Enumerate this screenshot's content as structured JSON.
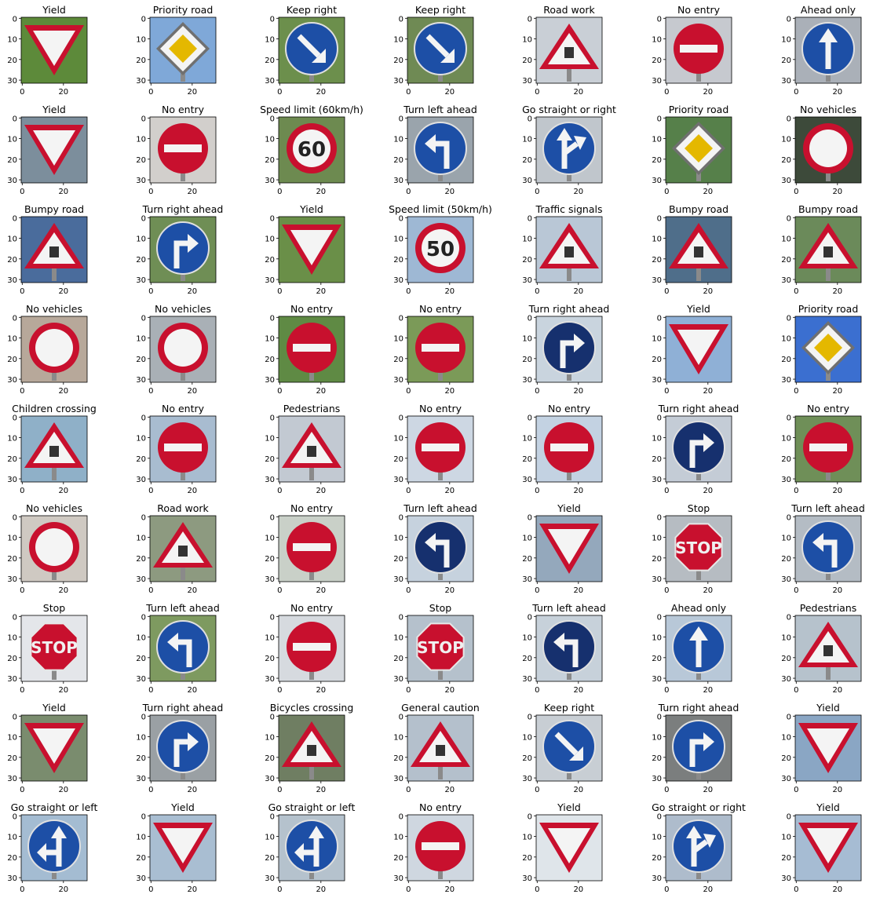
{
  "axis": {
    "x_ticks": [
      "0",
      "20"
    ],
    "y_ticks": [
      "0",
      "10",
      "20",
      "30"
    ]
  },
  "colors": {
    "red": "#c8102e",
    "blue": "#1d4fa6",
    "navy": "#16306e",
    "yellow": "#e4b800",
    "white": "#f4f4f4",
    "post": "#8a8a8a"
  },
  "panels": [
    {
      "title": "Yield",
      "sign": "yield",
      "bg": "#5d8a3a"
    },
    {
      "title": "Priority road",
      "sign": "priority",
      "bg": "#7fa8d8"
    },
    {
      "title": "Keep right",
      "sign": "keep-right",
      "bg": "#6c8f4c"
    },
    {
      "title": "Keep right",
      "sign": "keep-right",
      "bg": "#6f8a54"
    },
    {
      "title": "Road work",
      "sign": "warning",
      "bg": "#c9cfd6"
    },
    {
      "title": "No entry",
      "sign": "no-entry",
      "bg": "#c6c9cf"
    },
    {
      "title": "Ahead only",
      "sign": "ahead-only",
      "bg": "#aab0b8"
    },
    {
      "title": "Yield",
      "sign": "yield",
      "bg": "#7c8e9c"
    },
    {
      "title": "No entry",
      "sign": "no-entry",
      "bg": "#d2cfcc"
    },
    {
      "title": "Speed limit (60km/h)",
      "sign": "speed",
      "label": "60",
      "bg": "#6d8a50"
    },
    {
      "title": "Turn left ahead",
      "sign": "turn-left",
      "bg": "#9aa4ac"
    },
    {
      "title": "Go straight or right",
      "sign": "straight-right",
      "bg": "#c0c6cc"
    },
    {
      "title": "Priority road",
      "sign": "priority",
      "bg": "#56804a"
    },
    {
      "title": "No vehicles",
      "sign": "no-vehicles",
      "bg": "#3d4a3a"
    },
    {
      "title": "Bumpy road",
      "sign": "warning",
      "bg": "#4a6c9c"
    },
    {
      "title": "Turn right ahead",
      "sign": "turn-right",
      "bg": "#6f8e55"
    },
    {
      "title": "Yield",
      "sign": "yield",
      "bg": "#6a8f48"
    },
    {
      "title": "Speed limit (50km/h)",
      "sign": "speed",
      "label": "50",
      "bg": "#9eb8d4"
    },
    {
      "title": "Traffic signals",
      "sign": "warning",
      "bg": "#b9c7d6"
    },
    {
      "title": "Bumpy road",
      "sign": "warning",
      "bg": "#4f6e8a"
    },
    {
      "title": "Bumpy road",
      "sign": "warning",
      "bg": "#6b8a5a"
    },
    {
      "title": "No vehicles",
      "sign": "no-vehicles",
      "bg": "#b7a89a"
    },
    {
      "title": "No vehicles",
      "sign": "no-vehicles",
      "bg": "#a9b0b6"
    },
    {
      "title": "No entry",
      "sign": "no-entry",
      "bg": "#5f8a44"
    },
    {
      "title": "No entry",
      "sign": "no-entry",
      "bg": "#7b9a58"
    },
    {
      "title": "Turn right ahead",
      "sign": "turn-right-navy",
      "bg": "#c9d4de"
    },
    {
      "title": "Yield",
      "sign": "yield",
      "bg": "#8fb0d6"
    },
    {
      "title": "Priority road",
      "sign": "priority",
      "bg": "#3b6fd0"
    },
    {
      "title": "Children crossing",
      "sign": "warning",
      "bg": "#8fb0c8"
    },
    {
      "title": "No entry",
      "sign": "no-entry",
      "bg": "#a8bcd0"
    },
    {
      "title": "Pedestrians",
      "sign": "warning",
      "bg": "#c2c9d2"
    },
    {
      "title": "No entry",
      "sign": "no-entry",
      "bg": "#cdd7e3"
    },
    {
      "title": "No entry",
      "sign": "no-entry",
      "bg": "#c3d2e2"
    },
    {
      "title": "Turn right ahead",
      "sign": "turn-right-navy",
      "bg": "#c4ccd6"
    },
    {
      "title": "No entry",
      "sign": "no-entry",
      "bg": "#6f8f58"
    },
    {
      "title": "No vehicles",
      "sign": "no-vehicles",
      "bg": "#cfc9c2"
    },
    {
      "title": "Road work",
      "sign": "warning",
      "bg": "#8d9a80"
    },
    {
      "title": "No entry",
      "sign": "no-entry",
      "bg": "#c9d0c8"
    },
    {
      "title": "Turn left ahead",
      "sign": "turn-left-navy",
      "bg": "#c6d2de"
    },
    {
      "title": "Yield",
      "sign": "yield",
      "bg": "#94a8bc"
    },
    {
      "title": "Stop",
      "sign": "stop",
      "label": "STOP",
      "bg": "#b6bcc2"
    },
    {
      "title": "Turn left ahead",
      "sign": "turn-left",
      "bg": "#b4bcc4"
    },
    {
      "title": "Stop",
      "sign": "stop",
      "label": "STOP",
      "bg": "#e4e6ea"
    },
    {
      "title": "Turn left ahead",
      "sign": "turn-left",
      "bg": "#7e9a60"
    },
    {
      "title": "No entry",
      "sign": "no-entry",
      "bg": "#d6dadf"
    },
    {
      "title": "Stop",
      "sign": "stop",
      "label": "STOP",
      "bg": "#b5c1cc"
    },
    {
      "title": "Turn left ahead",
      "sign": "turn-left-navy",
      "bg": "#c7d1da"
    },
    {
      "title": "Ahead only",
      "sign": "ahead-only",
      "bg": "#b8c8d8"
    },
    {
      "title": "Pedestrians",
      "sign": "warning",
      "bg": "#b6c2cc"
    },
    {
      "title": "Yield",
      "sign": "yield",
      "bg": "#7a8c6e"
    },
    {
      "title": "Turn right ahead",
      "sign": "turn-right",
      "bg": "#9aa0a4"
    },
    {
      "title": "Bicycles crossing",
      "sign": "warning",
      "bg": "#6f7e62"
    },
    {
      "title": "General caution",
      "sign": "warning",
      "bg": "#b4c0cc"
    },
    {
      "title": "Keep right",
      "sign": "keep-right",
      "bg": "#c8ced4"
    },
    {
      "title": "Turn right ahead",
      "sign": "turn-right",
      "bg": "#7b7e7e"
    },
    {
      "title": "Yield",
      "sign": "yield",
      "bg": "#8aa6c4"
    },
    {
      "title": "Go straight or left",
      "sign": "straight-left",
      "bg": "#a4bcd2"
    },
    {
      "title": "Yield",
      "sign": "yield",
      "bg": "#a9bed2"
    },
    {
      "title": "Go straight or left",
      "sign": "straight-left",
      "bg": "#b5c2cd"
    },
    {
      "title": "No entry",
      "sign": "no-entry",
      "bg": "#cfd7e0"
    },
    {
      "title": "Yield",
      "sign": "yield",
      "bg": "#dfe5ea"
    },
    {
      "title": "Go straight or right",
      "sign": "straight-right",
      "bg": "#aebccc"
    },
    {
      "title": "Yield",
      "sign": "yield",
      "bg": "#a6bcd3"
    }
  ]
}
